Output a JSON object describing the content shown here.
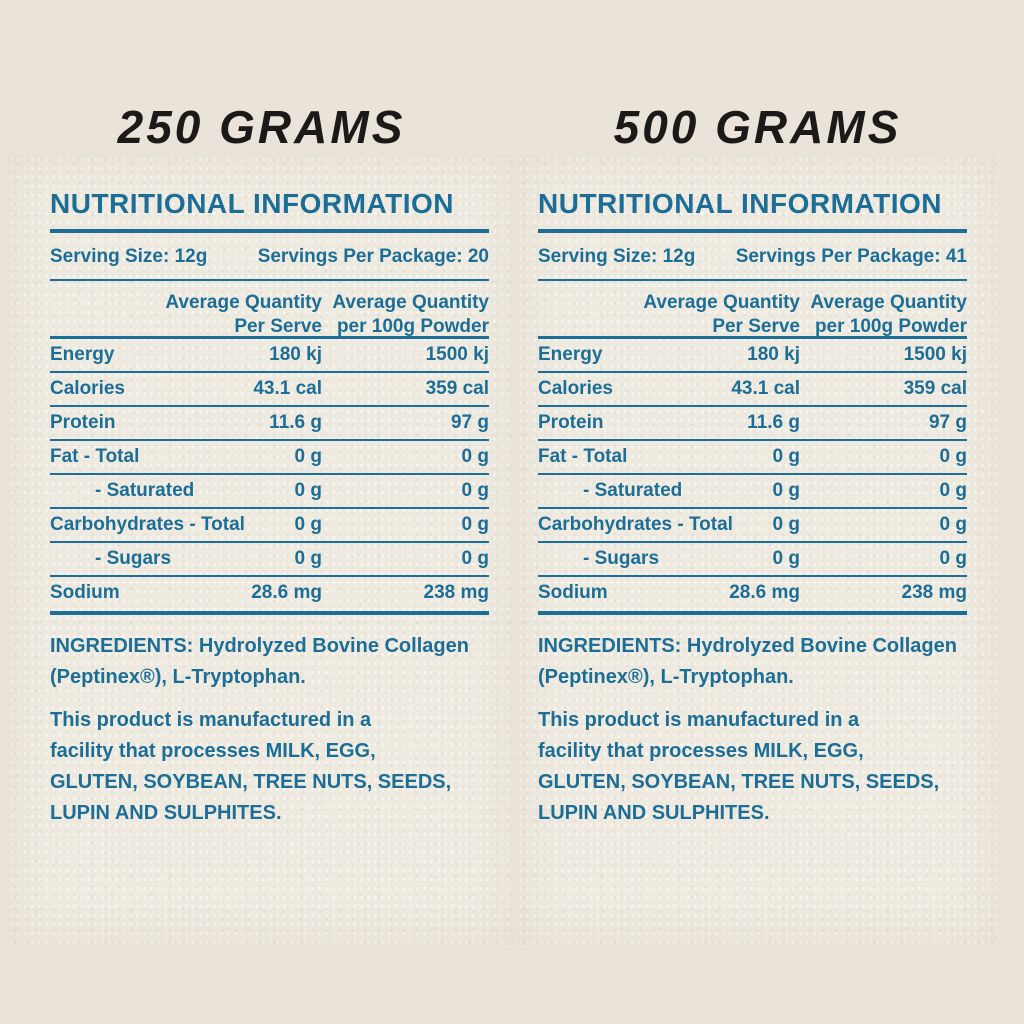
{
  "colors": {
    "accent": "#1d6e96",
    "title": "#1b1a18",
    "page_bg": "#e9e3d9",
    "panel_bg": "#eeeae0"
  },
  "panels": [
    {
      "size_title": "250 GRAMS",
      "header": "NUTRITIONAL INFORMATION",
      "serving_size": "Serving Size: 12g",
      "servings_per_package": "Servings Per Package: 20",
      "col_headers": {
        "per_serve": "Average Quantity\nPer Serve",
        "per_100g": "Average Quantity\nper 100g Powder"
      },
      "rows": [
        {
          "label": "Energy",
          "per_serve": "180 kj",
          "per_100g": "1500 kj"
        },
        {
          "label": "Calories",
          "per_serve": "43.1 cal",
          "per_100g": "359 cal"
        },
        {
          "label": "Protein",
          "per_serve": "11.6 g",
          "per_100g": "97 g"
        },
        {
          "label": "Fat - Total",
          "per_serve": "0 g",
          "per_100g": "0 g"
        },
        {
          "label": "- Saturated",
          "per_serve": "0 g",
          "per_100g": "0 g"
        },
        {
          "label": "Carbohydrates - Total",
          "per_serve": "0 g",
          "per_100g": "0 g"
        },
        {
          "label": "- Sugars",
          "per_serve": "0 g",
          "per_100g": "0 g"
        },
        {
          "label": "Sodium",
          "per_serve": "28.6 mg",
          "per_100g": "238 mg"
        }
      ],
      "ingredients": "INGREDIENTS: Hydrolyzed Bovine Collagen\n(Peptinex®), L-Tryptophan.",
      "facility_notice": "This product is manufactured in a\nfacility that processes MILK, EGG,\nGLUTEN, SOYBEAN, TREE NUTS, SEEDS,\nLUPIN AND SULPHITES."
    },
    {
      "size_title": "500 GRAMS",
      "header": "NUTRITIONAL INFORMATION",
      "serving_size": "Serving Size: 12g",
      "servings_per_package": "Servings Per Package: 41",
      "col_headers": {
        "per_serve": "Average Quantity\nPer Serve",
        "per_100g": "Average Quantity\nper 100g Powder"
      },
      "rows": [
        {
          "label": "Energy",
          "per_serve": "180 kj",
          "per_100g": "1500 kj"
        },
        {
          "label": "Calories",
          "per_serve": "43.1 cal",
          "per_100g": "359 cal"
        },
        {
          "label": "Protein",
          "per_serve": "11.6 g",
          "per_100g": "97 g"
        },
        {
          "label": "Fat - Total",
          "per_serve": "0 g",
          "per_100g": "0 g"
        },
        {
          "label": "- Saturated",
          "per_serve": "0 g",
          "per_100g": "0 g"
        },
        {
          "label": "Carbohydrates - Total",
          "per_serve": "0 g",
          "per_100g": "0 g"
        },
        {
          "label": "- Sugars",
          "per_serve": "0 g",
          "per_100g": "0 g"
        },
        {
          "label": "Sodium",
          "per_serve": "28.6 mg",
          "per_100g": "238 mg"
        }
      ],
      "ingredients": "INGREDIENTS: Hydrolyzed Bovine Collagen\n(Peptinex®), L-Tryptophan.",
      "facility_notice": "This product is manufactured in a\nfacility that processes MILK, EGG,\nGLUTEN, SOYBEAN, TREE NUTS, SEEDS,\nLUPIN AND SULPHITES."
    }
  ]
}
